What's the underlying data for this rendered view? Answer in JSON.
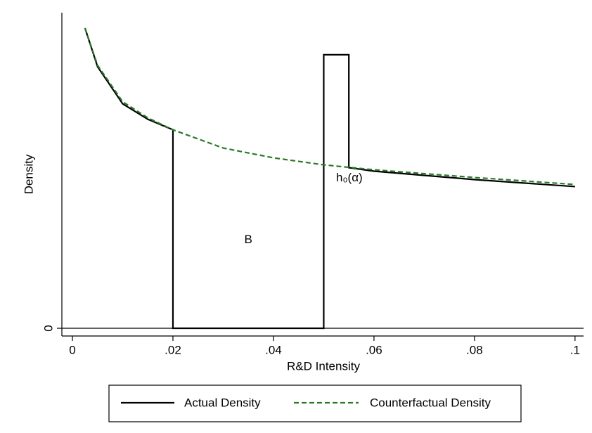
{
  "chart_data": {
    "type": "line",
    "x_label": "R&D Intensity",
    "y_label": "Density",
    "xlim": [
      -0.0021,
      0.1017
    ],
    "ylim": [
      -1.1,
      45
    ],
    "xticks": [
      {
        "value": 0,
        "label": "0"
      },
      {
        "value": 0.02,
        "label": ".02"
      },
      {
        "value": 0.04,
        "label": ".04"
      },
      {
        "value": 0.06,
        "label": ".06"
      },
      {
        "value": 0.08,
        "label": ".08"
      },
      {
        "value": 0.1,
        "label": ".1"
      }
    ],
    "yticks": [
      0
    ],
    "grid": false,
    "legend": "bottom",
    "series": [
      {
        "name": "Actual Density",
        "color": "#000000",
        "dash": false,
        "x": [
          0.0025,
          0.005,
          0.01,
          0.015,
          0.02,
          0.02,
          0.05,
          0.05,
          0.055,
          0.055,
          0.06,
          0.08,
          0.1
        ],
        "values": [
          42.8,
          37.3,
          32.0,
          29.8,
          28.3,
          0,
          0,
          39.0,
          39.0,
          22.9,
          22.4,
          21.2,
          20.2
        ]
      },
      {
        "name": "Counterfactual Density",
        "color": "#2a7a2a",
        "dash": true,
        "x": [
          0.0025,
          0.005,
          0.01,
          0.015,
          0.02,
          0.03,
          0.04,
          0.05,
          0.06,
          0.08,
          0.1
        ],
        "values": [
          42.8,
          37.5,
          32.3,
          30.0,
          28.3,
          25.7,
          24.3,
          23.3,
          22.6,
          21.5,
          20.5
        ]
      }
    ],
    "annotations": [
      {
        "text": "B",
        "x": 0.035,
        "y": 12.6
      },
      {
        "text": "h₀(α)",
        "x": 0.0551,
        "y": 21.4
      }
    ]
  }
}
